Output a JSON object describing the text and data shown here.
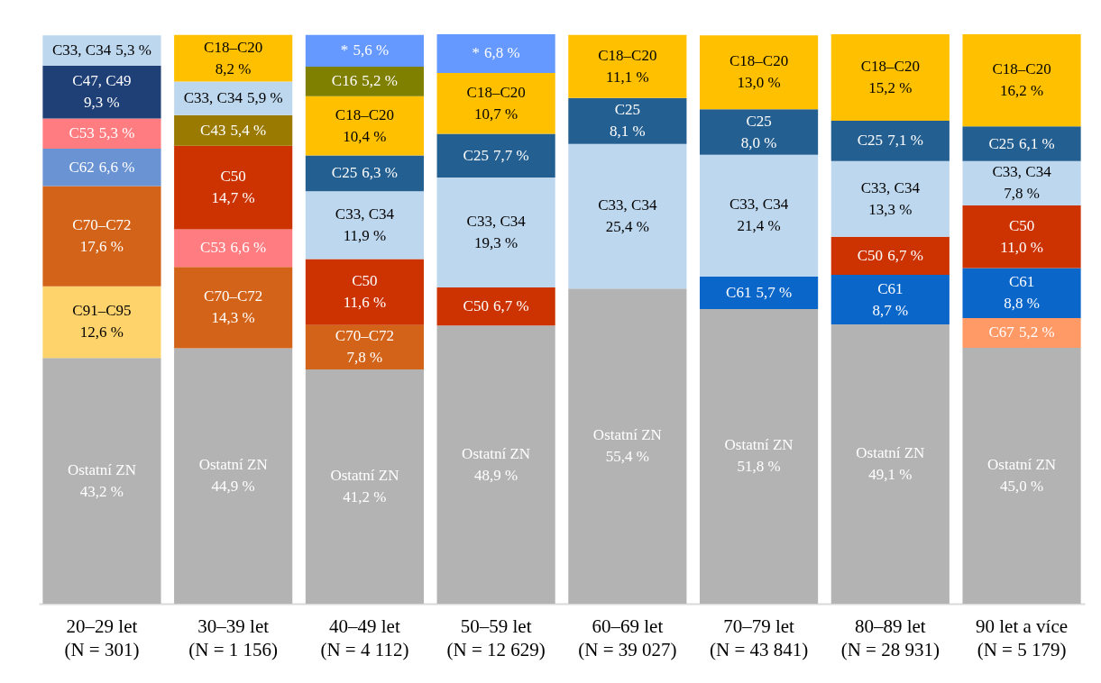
{
  "chart_data": {
    "type": "bar",
    "stacked": true,
    "categories": [
      "20–29 let\n(N = 301)",
      "30–39 let\n(N = 1 156)",
      "40–49 let\n(N = 4 112)",
      "50–59 let\n(N = 12 629)",
      "60–69 let\n(N = 39 027)",
      "70–79 let\n(N = 43 841)",
      "80–89 let\n(N = 28 931)",
      "90 let a více\n(N = 5 179)"
    ],
    "series": [
      {
        "name": "Ostatní ZN",
        "color": "#b3b3b3",
        "values": [
          43.2,
          44.9,
          41.2,
          48.9,
          55.4,
          51.8,
          49.1,
          45.0
        ],
        "value_labels": [
          "43,2 %",
          "44,9 %",
          "41,2 %",
          "48,9 %",
          "55,4 %",
          "51,8 %",
          "49,1 %",
          "45,0 %"
        ]
      },
      {
        "name": "C91–C95",
        "color": "#ffd36b",
        "values": [
          12.6,
          null,
          null,
          null,
          null,
          null,
          null,
          null
        ],
        "value_labels": [
          "12,6 %",
          null,
          null,
          null,
          null,
          null,
          null,
          null
        ]
      },
      {
        "name": "C70–C72",
        "color": "#d4631a",
        "values": [
          17.6,
          14.3,
          7.8,
          null,
          null,
          null,
          null,
          null
        ],
        "value_labels": [
          "17,6 %",
          "14,3 %",
          "7,8 %",
          null,
          null,
          null,
          null,
          null
        ]
      },
      {
        "name": "C67",
        "color": "#ff9966",
        "values": [
          null,
          null,
          null,
          null,
          null,
          null,
          null,
          5.2
        ],
        "value_labels": [
          null,
          null,
          null,
          null,
          null,
          null,
          null,
          "5,2 %"
        ]
      },
      {
        "name": "C62",
        "color": "#6a93d4",
        "values": [
          6.6,
          null,
          null,
          null,
          null,
          null,
          null,
          null
        ],
        "value_labels": [
          "6,6 %",
          null,
          null,
          null,
          null,
          null,
          null,
          null
        ]
      },
      {
        "name": "C61",
        "color": "#0a66c9",
        "values": [
          null,
          null,
          null,
          null,
          null,
          5.7,
          8.7,
          8.8
        ],
        "value_labels": [
          null,
          null,
          null,
          null,
          null,
          "5,7 %",
          "8,7 %",
          "8,8 %"
        ]
      },
      {
        "name": "C53",
        "color": "#ff7c80",
        "values": [
          5.3,
          6.6,
          null,
          null,
          null,
          null,
          null,
          null
        ],
        "value_labels": [
          "5,3 %",
          "6,6 %",
          null,
          null,
          null,
          null,
          null,
          null
        ]
      },
      {
        "name": "C50",
        "color": "#cc3300",
        "values": [
          null,
          14.7,
          11.6,
          6.7,
          null,
          null,
          6.7,
          11.0
        ],
        "value_labels": [
          null,
          "14,7 %",
          "11,6 %",
          "6,7 %",
          null,
          null,
          "6,7 %",
          "11,0 %"
        ]
      },
      {
        "name": "C47, C49",
        "color": "#1f3f77",
        "values": [
          9.3,
          null,
          null,
          null,
          null,
          null,
          null,
          null
        ],
        "value_labels": [
          "9,3 %",
          null,
          null,
          null,
          null,
          null,
          null,
          null
        ]
      },
      {
        "name": "C43",
        "color": "#9a7a00",
        "values": [
          null,
          5.4,
          null,
          null,
          null,
          null,
          null,
          null
        ],
        "value_labels": [
          null,
          "5,4 %",
          null,
          null,
          null,
          null,
          null,
          null
        ]
      },
      {
        "name": "C33, C34",
        "color": "#bdd7ee",
        "values": [
          5.3,
          5.9,
          11.9,
          19.3,
          25.4,
          21.4,
          13.3,
          7.8
        ],
        "value_labels": [
          "5,3 %",
          "5,9 %",
          "11,9 %",
          "19,3 %",
          "25,4 %",
          "21,4 %",
          "13,3 %",
          "7,8 %"
        ]
      },
      {
        "name": "C25",
        "color": "#245f91",
        "values": [
          null,
          null,
          6.3,
          7.7,
          8.1,
          8.0,
          7.1,
          6.1
        ],
        "value_labels": [
          null,
          null,
          "6,3 %",
          "7,7 %",
          "8,1 %",
          "8,0 %",
          "7,1 %",
          "6,1 %"
        ]
      },
      {
        "name": "C18–C20",
        "color": "#ffc000",
        "values": [
          null,
          8.2,
          10.4,
          10.7,
          11.1,
          13.0,
          15.2,
          16.2
        ],
        "value_labels": [
          null,
          "8,2 %",
          "10,4 %",
          "10,7 %",
          "11,1 %",
          "13,0 %",
          "15,2 %",
          "16,2 %"
        ]
      },
      {
        "name": "C16",
        "color": "#7f7f00",
        "values": [
          null,
          null,
          5.2,
          null,
          null,
          null,
          null,
          null
        ],
        "value_labels": [
          null,
          null,
          "5,2 %",
          null,
          null,
          null,
          null,
          null
        ]
      },
      {
        "name": "*",
        "color": "#6699ff",
        "values": [
          null,
          null,
          5.6,
          6.8,
          null,
          null,
          null,
          null
        ],
        "value_labels": [
          null,
          null,
          "5,6 %",
          "6,8 %",
          null,
          null,
          null,
          null
        ]
      }
    ]
  }
}
